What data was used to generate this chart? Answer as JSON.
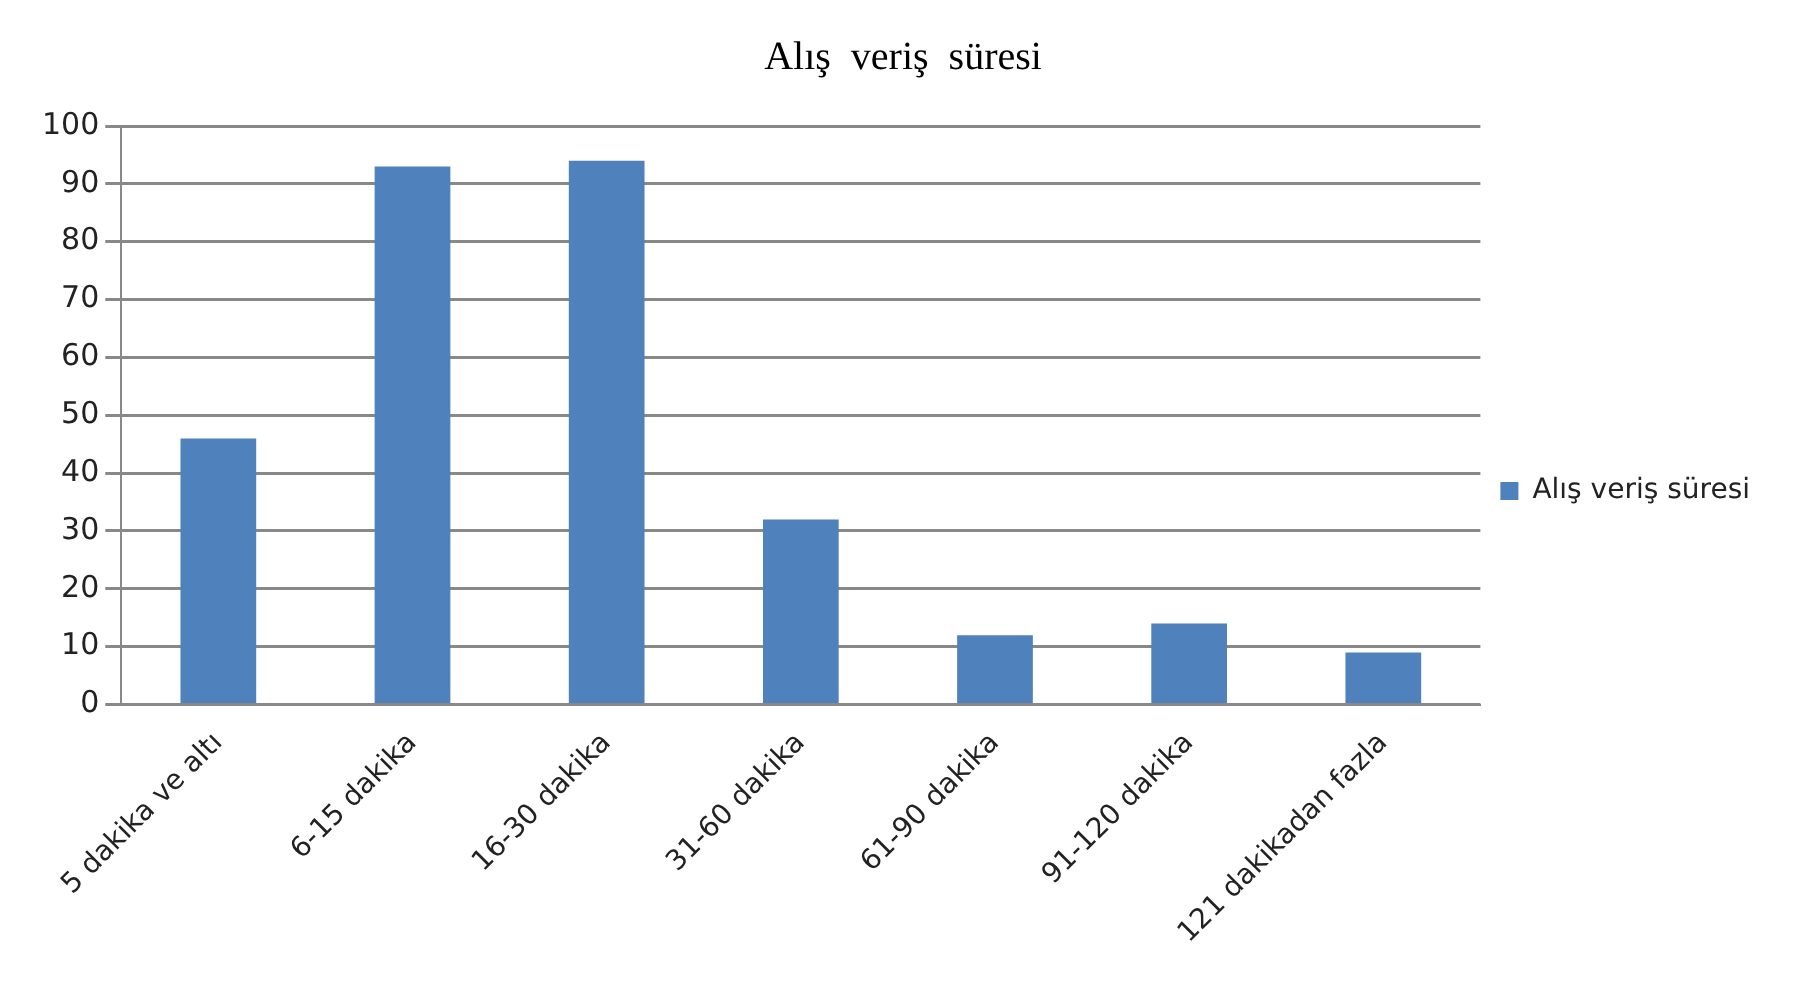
{
  "chart_data": {
    "type": "bar",
    "title": "Alış  veriş  süresi",
    "categories": [
      "5 dakika ve altı",
      "6-15 dakika",
      "16-30 dakika",
      "31-60 dakika",
      "61-90 dakika",
      "91-120 dakika",
      "121 dakikadan fazla"
    ],
    "series": [
      {
        "name": "Alış veriş süresi",
        "color": "#4f81bd",
        "values": [
          46,
          93,
          94,
          32,
          12,
          14,
          9
        ]
      }
    ],
    "ylim": [
      0,
      100
    ],
    "yticks": [
      0,
      10,
      20,
      30,
      40,
      50,
      60,
      70,
      80,
      90,
      100
    ],
    "grid": "y",
    "legend": "right"
  }
}
